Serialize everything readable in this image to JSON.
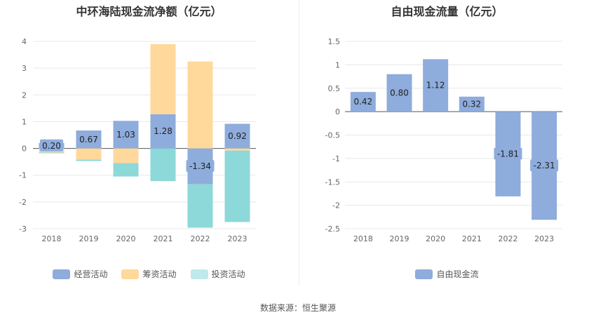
{
  "chart_data": [
    {
      "type": "bar",
      "stacked": true,
      "title": "中环海陆现金流净额（亿元）",
      "categories": [
        "2018",
        "2019",
        "2020",
        "2021",
        "2022",
        "2023"
      ],
      "ylim": [
        -3,
        4
      ],
      "yticks": [
        "4",
        "3",
        "2",
        "1",
        "0",
        "-1",
        "-2",
        "-3"
      ],
      "grid": true,
      "legend_position": "bottom",
      "series": [
        {
          "name": "经营活动",
          "color": "#8eacdc",
          "values": [
            0.2,
            0.67,
            1.03,
            1.28,
            -1.34,
            0.92
          ],
          "labels": [
            "0.20",
            "0.67",
            "1.03",
            "1.28",
            "-1.34",
            "0.92"
          ]
        },
        {
          "name": "筹资活动",
          "color": "#ffd89c",
          "values": [
            -0.15,
            -0.42,
            -0.55,
            2.62,
            3.25,
            -0.08
          ]
        },
        {
          "name": "投资活动",
          "color": "#8dd8d8",
          "legend_color": "#bfe9ea",
          "values": [
            -0.03,
            -0.05,
            -0.5,
            -1.22,
            -1.62,
            -2.67
          ]
        }
      ]
    },
    {
      "type": "bar",
      "title": "自由现金流量（亿元）",
      "categories": [
        "2018",
        "2019",
        "2020",
        "2021",
        "2022",
        "2023"
      ],
      "ylim": [
        -2.5,
        1.5
      ],
      "yticks": [
        "1.5",
        "1",
        "0.5",
        "0",
        "-0.5",
        "-1",
        "-1.5",
        "-2",
        "-2.5"
      ],
      "grid": true,
      "legend_position": "bottom",
      "series": [
        {
          "name": "自由现金流",
          "color": "#8eacdc",
          "values": [
            0.42,
            0.8,
            1.12,
            0.32,
            -1.81,
            -2.31
          ],
          "labels": [
            "0.42",
            "0.80",
            "1.12",
            "0.32",
            "-1.81",
            "-2.31"
          ]
        }
      ]
    }
  ],
  "footer": "数据来源：恒生聚源"
}
